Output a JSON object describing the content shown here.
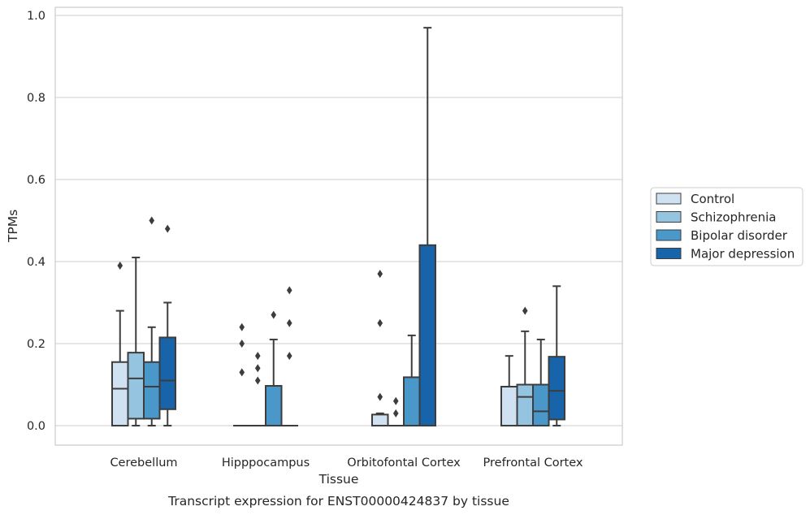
{
  "chart_data": {
    "type": "boxplot",
    "title": "Transcript expression for ENST00000424837 by tissue",
    "xlabel": "Tissue",
    "ylabel": "TPMs",
    "ylim": [
      -0.045,
      1.02
    ],
    "yticks": [
      "0.0",
      "0.2",
      "0.4",
      "0.6",
      "0.8",
      "1.0"
    ],
    "grid": true,
    "legend_position": "right",
    "categories": [
      "Cerebellum",
      "Hipppocampus",
      "Orbitofontal Cortex",
      "Prefrontal Cortex"
    ],
    "series": [
      {
        "name": "Control",
        "color": "#d0e1f2",
        "boxes": [
          {
            "q1": 0.0,
            "median": 0.09,
            "q3": 0.155,
            "whisker_low": 0.0,
            "whisker_high": 0.28,
            "outliers": [
              0.39
            ]
          },
          {
            "q1": 0.0,
            "median": 0.0,
            "q3": 0.0,
            "whisker_low": 0.0,
            "whisker_high": 0.0,
            "outliers": [
              0.13,
              0.2,
              0.24
            ]
          },
          {
            "q1": 0.0,
            "median": 0.0,
            "q3": 0.027,
            "whisker_low": 0.0,
            "whisker_high": 0.03,
            "outliers": [
              0.07,
              0.25,
              0.37
            ]
          },
          {
            "q1": 0.0,
            "median": 0.095,
            "q3": 0.095,
            "whisker_low": 0.0,
            "whisker_high": 0.17,
            "outliers": []
          }
        ]
      },
      {
        "name": "Schizophrenia",
        "color": "#94c4df",
        "boxes": [
          {
            "q1": 0.017,
            "median": 0.115,
            "q3": 0.178,
            "whisker_low": 0.0,
            "whisker_high": 0.41,
            "outliers": []
          },
          {
            "q1": 0.0,
            "median": 0.0,
            "q3": 0.0,
            "whisker_low": 0.0,
            "whisker_high": 0.0,
            "outliers": [
              0.11,
              0.14,
              0.17
            ]
          },
          {
            "q1": 0.0,
            "median": 0.0,
            "q3": 0.0,
            "whisker_low": 0.0,
            "whisker_high": 0.0,
            "outliers": [
              0.03,
              0.06
            ]
          },
          {
            "q1": 0.0,
            "median": 0.07,
            "q3": 0.1,
            "whisker_low": 0.0,
            "whisker_high": 0.23,
            "outliers": [
              0.28
            ]
          }
        ]
      },
      {
        "name": "Bipolar disorder",
        "color": "#4a98c9",
        "boxes": [
          {
            "q1": 0.017,
            "median": 0.095,
            "q3": 0.155,
            "whisker_low": 0.0,
            "whisker_high": 0.24,
            "outliers": [
              0.5
            ]
          },
          {
            "q1": 0.0,
            "median": 0.0,
            "q3": 0.097,
            "whisker_low": 0.0,
            "whisker_high": 0.21,
            "outliers": [
              0.27
            ]
          },
          {
            "q1": 0.0,
            "median": 0.0,
            "q3": 0.118,
            "whisker_low": 0.0,
            "whisker_high": 0.22,
            "outliers": []
          },
          {
            "q1": 0.0,
            "median": 0.035,
            "q3": 0.1,
            "whisker_low": 0.0,
            "whisker_high": 0.21,
            "outliers": []
          }
        ]
      },
      {
        "name": "Major depression",
        "color": "#1764ab",
        "boxes": [
          {
            "q1": 0.04,
            "median": 0.11,
            "q3": 0.215,
            "whisker_low": 0.0,
            "whisker_high": 0.3,
            "outliers": [
              0.48
            ]
          },
          {
            "q1": 0.0,
            "median": 0.0,
            "q3": 0.0,
            "whisker_low": 0.0,
            "whisker_high": 0.0,
            "outliers": [
              0.17,
              0.25,
              0.33
            ]
          },
          {
            "q1": 0.0,
            "median": 0.0,
            "q3": 0.44,
            "whisker_low": 0.0,
            "whisker_high": 0.97,
            "outliers": []
          },
          {
            "q1": 0.015,
            "median": 0.085,
            "q3": 0.168,
            "whisker_low": 0.0,
            "whisker_high": 0.34,
            "outliers": []
          }
        ]
      }
    ]
  }
}
